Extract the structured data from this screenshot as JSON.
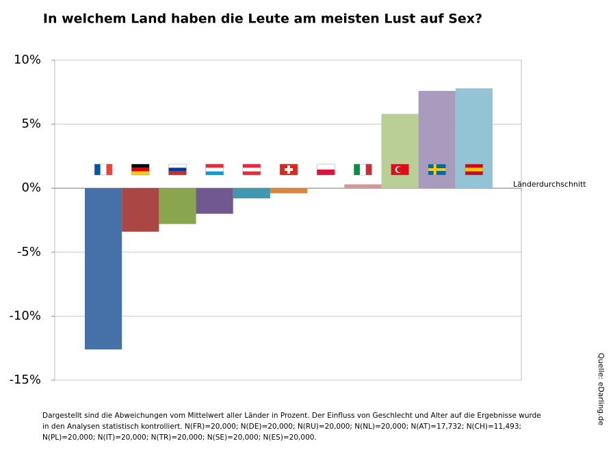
{
  "chart_data": {
    "type": "bar",
    "title": "In welchem Land haben die Leute am meisten Lust auf Sex?",
    "categories": [
      null,
      null,
      null,
      null,
      null,
      null,
      null,
      null,
      null,
      null,
      null
    ],
    "values": [
      -12.6,
      -3.4,
      -2.8,
      -2.0,
      -0.8,
      -0.4,
      0,
      0.3,
      5.8,
      7.6,
      7.8
    ],
    "colors": [
      "#4671a8",
      "#aa4643",
      "#89a54e",
      "#71588f",
      "#4198af",
      "#db843d",
      "#c0c0c0",
      "#d09a9a",
      "#b9cf96",
      "#a99bbd",
      "#92c4d6"
    ],
    "ylim": [
      -15,
      10
    ],
    "yticks": [
      {
        "value": -15,
        "label": "-15%"
      },
      {
        "value": -10,
        "label": "-10%"
      },
      {
        "value": -5,
        "label": "-5%"
      },
      {
        "value": 0,
        "label": "0%"
      },
      {
        "value": 5,
        "label": "5%"
      },
      {
        "value": 10,
        "label": "10%"
      }
    ],
    "grid": true,
    "annotation": "Länderdurchschnitt",
    "source": "Quelle: eDarling.de",
    "footnote": "Dargestellt sind die Abweichungen vom Mittelwert aller Länder in Prozent. Der Einfluss von Geschlecht und Alter auf die Ergebnisse wurde in den Analysen statistisch kontrolliert. N(FR)=20,000; N(DE)=20,000; N(RU)=20,000; N(NL)=20,000; N(AT)=17,732; N(CH)=11,493; N(PL)=20,000; N(IT)=20,000; N(TR)=20,000; N(SE)=20,000; N(ES)=20,000."
  }
}
